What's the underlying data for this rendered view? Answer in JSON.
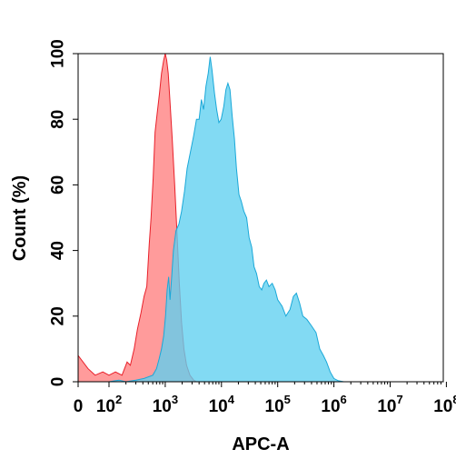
{
  "chart_data": {
    "type": "area",
    "title": "",
    "xlabel": "APC-A",
    "ylabel": "Count  (%)",
    "x_scale": "biexponential",
    "xlim": [
      0,
      100000000
    ],
    "ylim": [
      0,
      100
    ],
    "grid": false,
    "x_ticks": [
      {
        "base": "0",
        "exp": ""
      },
      {
        "base": "10",
        "exp": "2"
      },
      {
        "base": "10",
        "exp": "3"
      },
      {
        "base": "10",
        "exp": "4"
      },
      {
        "base": "10",
        "exp": "5"
      },
      {
        "base": "10",
        "exp": "6"
      },
      {
        "base": "10",
        "exp": "7"
      },
      {
        "base": "10",
        "exp": "8"
      }
    ],
    "y_ticks": [
      "0",
      "20",
      "40",
      "60",
      "80",
      "100"
    ],
    "series": [
      {
        "color": "#ff7f7f",
        "stroke": "#e8202a",
        "points": [
          [
            0,
            8
          ],
          [
            32,
            4
          ],
          [
            55,
            2
          ],
          [
            80,
            3
          ],
          [
            100,
            2
          ],
          [
            130,
            3
          ],
          [
            170,
            2
          ],
          [
            210,
            6
          ],
          [
            240,
            5
          ],
          [
            280,
            10
          ],
          [
            320,
            16
          ],
          [
            370,
            21
          ],
          [
            420,
            26
          ],
          [
            470,
            29
          ],
          [
            520,
            42
          ],
          [
            560,
            50
          ],
          [
            610,
            62
          ],
          [
            660,
            76
          ],
          [
            720,
            82
          ],
          [
            790,
            88
          ],
          [
            860,
            94
          ],
          [
            940,
            98
          ],
          [
            1000,
            100
          ],
          [
            1060,
            98
          ],
          [
            1130,
            94
          ],
          [
            1210,
            86
          ],
          [
            1330,
            74
          ],
          [
            1470,
            60
          ],
          [
            1620,
            45
          ],
          [
            1780,
            30
          ],
          [
            1950,
            18
          ],
          [
            2150,
            10
          ],
          [
            2400,
            5
          ],
          [
            2750,
            2
          ],
          [
            3200,
            0.5
          ],
          [
            3600,
            0
          ]
        ]
      },
      {
        "color": "#5fd0f0",
        "stroke": "#1aa8d8",
        "points": [
          [
            100,
            0
          ],
          [
            150,
            0.5
          ],
          [
            200,
            0
          ],
          [
            300,
            0.5
          ],
          [
            420,
            1
          ],
          [
            600,
            2
          ],
          [
            700,
            4
          ],
          [
            780,
            7
          ],
          [
            860,
            10
          ],
          [
            940,
            14
          ],
          [
            1010,
            20
          ],
          [
            1080,
            28
          ],
          [
            1150,
            32
          ],
          [
            1220,
            25
          ],
          [
            1300,
            32
          ],
          [
            1400,
            40
          ],
          [
            1550,
            46
          ],
          [
            1750,
            48
          ],
          [
            1950,
            52
          ],
          [
            2200,
            58
          ],
          [
            2450,
            65
          ],
          [
            2800,
            70
          ],
          [
            3200,
            75
          ],
          [
            3600,
            80
          ],
          [
            4000,
            80
          ],
          [
            4400,
            86
          ],
          [
            4800,
            83
          ],
          [
            5300,
            90
          ],
          [
            5800,
            94
          ],
          [
            6300,
            99
          ],
          [
            6800,
            95
          ],
          [
            7500,
            88
          ],
          [
            8200,
            83
          ],
          [
            9000,
            79
          ],
          [
            9900,
            80
          ],
          [
            11000,
            84
          ],
          [
            12000,
            89
          ],
          [
            13000,
            91
          ],
          [
            14200,
            89
          ],
          [
            15500,
            81
          ],
          [
            17000,
            74
          ],
          [
            18500,
            65
          ],
          [
            20500,
            57
          ],
          [
            22500,
            55
          ],
          [
            25000,
            52
          ],
          [
            28000,
            50
          ],
          [
            31000,
            44
          ],
          [
            34500,
            41
          ],
          [
            38000,
            35
          ],
          [
            42000,
            33
          ],
          [
            47000,
            29
          ],
          [
            52000,
            28
          ],
          [
            57000,
            30
          ],
          [
            63000,
            31
          ],
          [
            70000,
            29
          ],
          [
            80000,
            30
          ],
          [
            90000,
            28
          ],
          [
            100000,
            25
          ],
          [
            120000,
            23
          ],
          [
            140000,
            20
          ],
          [
            165000,
            22
          ],
          [
            190000,
            26
          ],
          [
            215000,
            27
          ],
          [
            245000,
            24
          ],
          [
            280000,
            20
          ],
          [
            330000,
            19
          ],
          [
            400000,
            17
          ],
          [
            480000,
            15
          ],
          [
            560000,
            10
          ],
          [
            650000,
            8
          ],
          [
            740000,
            6
          ],
          [
            860000,
            3
          ],
          [
            1000000,
            1
          ],
          [
            1200000,
            0.3
          ],
          [
            1500000,
            0
          ]
        ]
      }
    ]
  }
}
